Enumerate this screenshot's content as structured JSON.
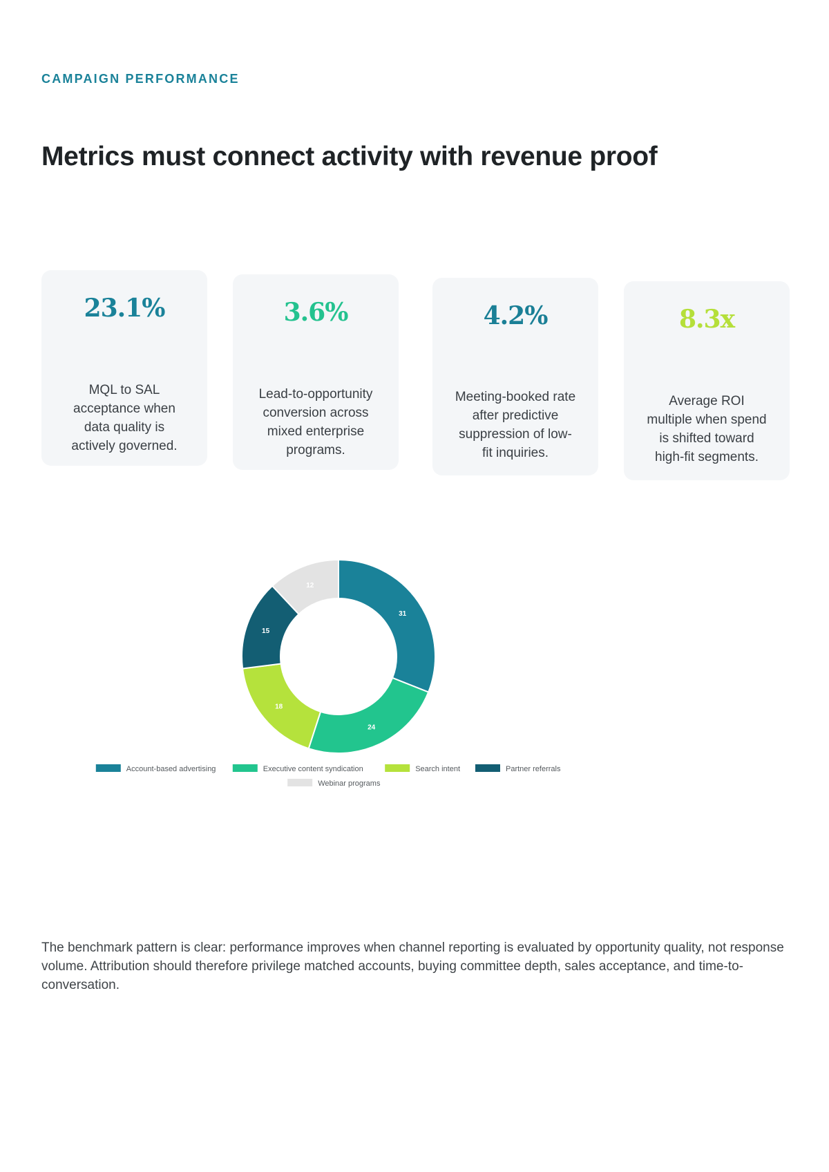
{
  "header": {
    "eyebrow": "CAMPAIGN PERFORMANCE",
    "title": "Metrics must connect activity with revenue proof"
  },
  "stats": [
    {
      "value": "23.1%",
      "description": "MQL to SAL acceptance when data quality is actively governed.",
      "color": "#1a8299"
    },
    {
      "value": "3.6%",
      "description": "Lead-to-opportunity conversion across mixed enterprise programs.",
      "color": "#24c28f"
    },
    {
      "value": "4.2%",
      "description": "Meeting-booked rate after predictive suppression of low-fit inquiries.",
      "color": "#1a7f96"
    },
    {
      "value": "8.3x",
      "description": "Average ROI multiple when spend is shifted toward high-fit segments.",
      "color": "#b5df3a"
    }
  ],
  "chart_data": {
    "type": "pie",
    "style": "donut",
    "series": [
      {
        "name": "Account-based advertising",
        "value": 31,
        "color": "#1a8299"
      },
      {
        "name": "Executive content syndication",
        "value": 24,
        "color": "#22c58e"
      },
      {
        "name": "Search intent",
        "value": 18,
        "color": "#b5e23c"
      },
      {
        "name": "Partner referrals",
        "value": 15,
        "color": "#135e73"
      },
      {
        "name": "Webinar programs",
        "value": 12,
        "color": "#e3e3e3"
      }
    ],
    "legend": "bottom"
  },
  "footer": {
    "paragraph": "The benchmark pattern is clear: performance improves when channel reporting is evaluated by opportunity quality, not response volume. Attribution should therefore privilege matched accounts, buying committee depth, sales acceptance, and time-to-conversation."
  }
}
